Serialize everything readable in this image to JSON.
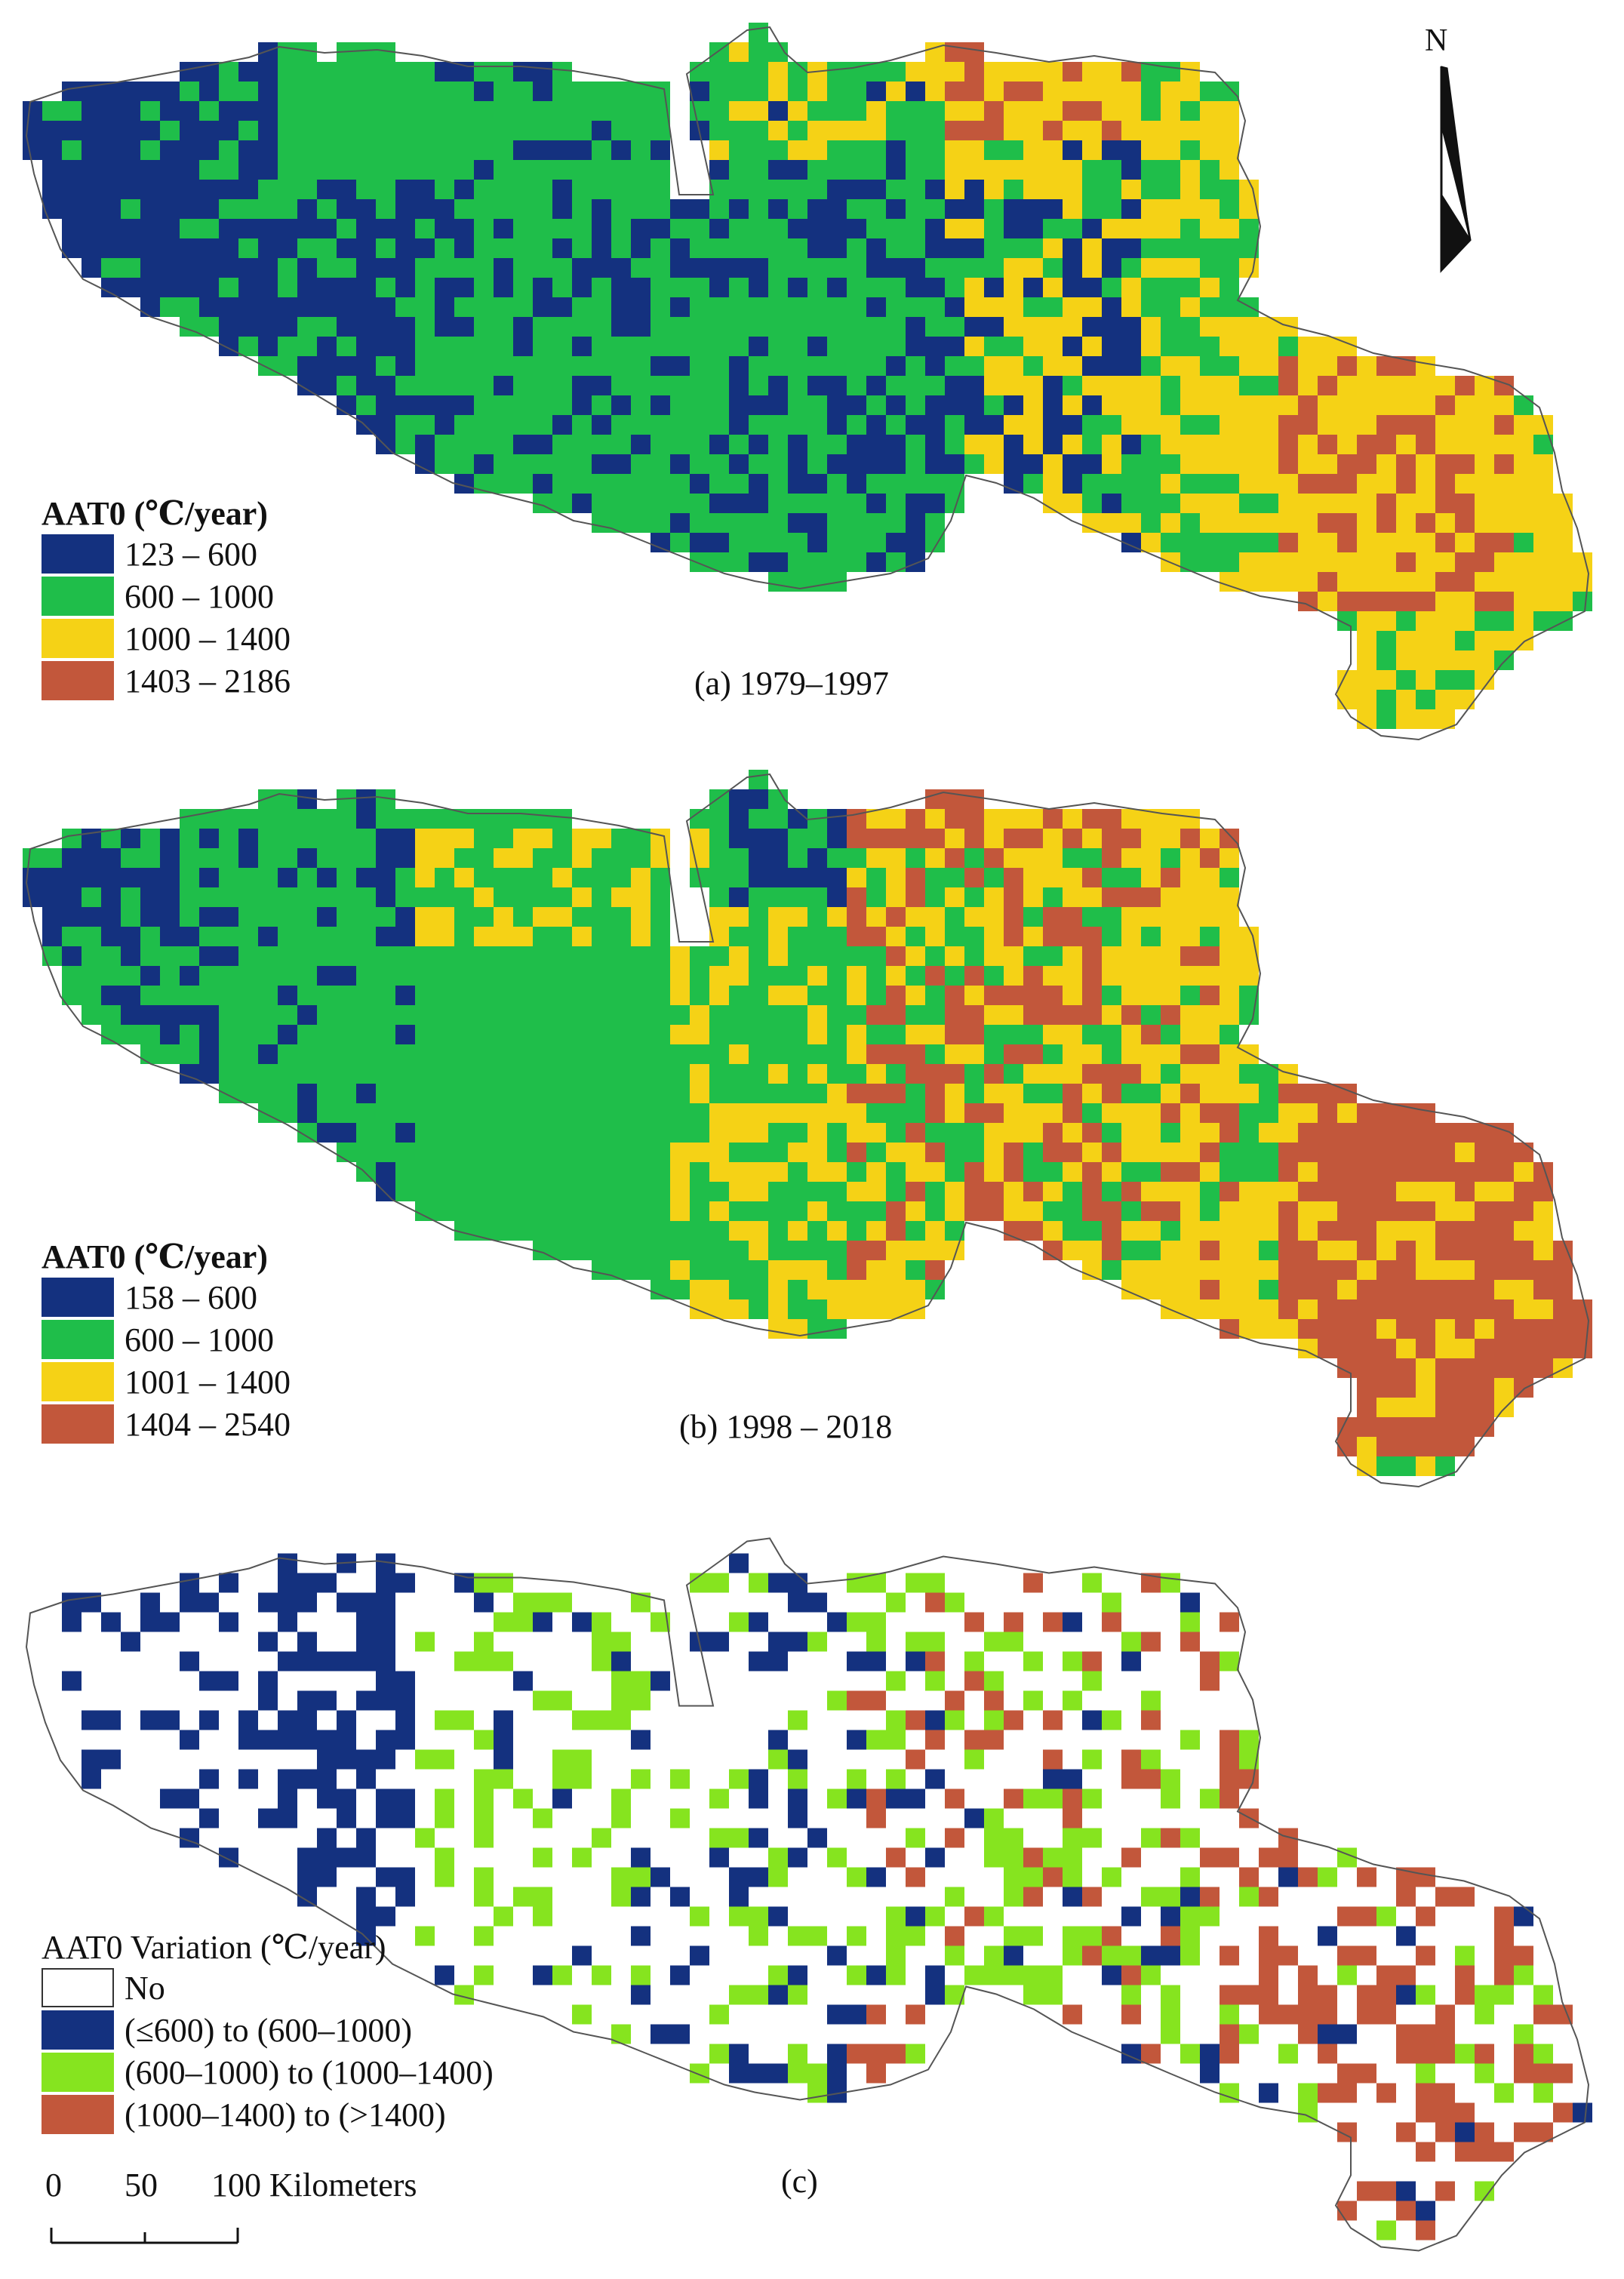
{
  "north_label": "N",
  "colors": {
    "outline": "#555555",
    "blue": "#14317f",
    "green": "#1fbe4a",
    "yellow": "#f5d216",
    "red": "#c2573b",
    "lime": "#86e41f",
    "white": "#ffffff"
  },
  "panels": [
    {
      "id": "a",
      "label": "(a) 1979–1997",
      "legend_title": "AAT0 (℃/year)",
      "legend": [
        {
          "label": "123 – 600",
          "color": "#14317f"
        },
        {
          "label": "600 – 1000",
          "color": "#1fbe4a"
        },
        {
          "label": "1000 – 1400",
          "color": "#f5d216"
        },
        {
          "label": "1403 – 2186",
          "color": "#c2573b"
        }
      ]
    },
    {
      "id": "b",
      "label": "(b) 1998 – 2018",
      "legend_title": "AAT0 (℃/year)",
      "legend": [
        {
          "label": "158 – 600",
          "color": "#14317f"
        },
        {
          "label": "600 – 1000",
          "color": "#1fbe4a"
        },
        {
          "label": "1001 – 1400",
          "color": "#f5d216"
        },
        {
          "label": "1404 – 2540",
          "color": "#c2573b"
        }
      ]
    },
    {
      "id": "c",
      "label": "(c)",
      "legend_title": "AAT0 Variation (℃/year)",
      "legend": [
        {
          "label": "No",
          "color": "#ffffff"
        },
        {
          "label": "(≤600) to (600–1000)",
          "color": "#14317f"
        },
        {
          "label": "(600–1000) to (1000–1400)",
          "color": "#86e41f"
        },
        {
          "label": "(1000–1400) to (>1400)",
          "color": "#c2573b"
        }
      ]
    }
  ],
  "scale_bar": {
    "labels": [
      "0",
      "50",
      "100 Kilometers"
    ]
  }
}
